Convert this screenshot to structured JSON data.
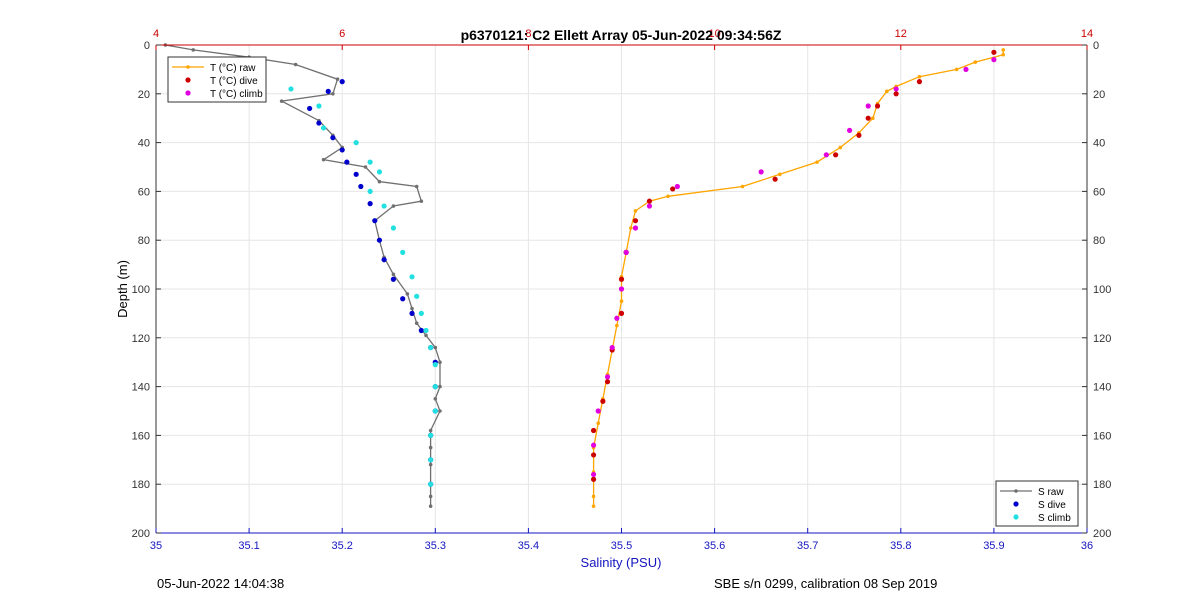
{
  "chart_data": {
    "type": "scatter",
    "title": "p6370121: C2 Ellett Array 05-Jun-2022 09:34:56Z",
    "xlabel": "Salinity (PSU)",
    "ylabel": "Depth (m)",
    "xlim": [
      35,
      36
    ],
    "x_ticks": [
      "35",
      "35.1",
      "35.2",
      "35.3",
      "35.4",
      "35.5",
      "35.6",
      "35.7",
      "35.8",
      "35.9",
      "36"
    ],
    "top_xlim": [
      4,
      14
    ],
    "top_ticks": [
      "4",
      "6",
      "8",
      "10",
      "12",
      "14"
    ],
    "top_axis_color": "#cc0000",
    "ylim": [
      0,
      200
    ],
    "y_reversed": true,
    "y_ticks": [
      "0",
      "20",
      "40",
      "60",
      "80",
      "100",
      "120",
      "140",
      "160",
      "180",
      "200"
    ],
    "grid": true,
    "temperature": {
      "legend_placement": "top-left",
      "series": [
        {
          "name": "T (°C) raw",
          "color": "#ffa500",
          "kind": "line",
          "points": [
            [
              13.1,
              2
            ],
            [
              13.1,
              4
            ],
            [
              12.8,
              7
            ],
            [
              12.6,
              10
            ],
            [
              12.2,
              13
            ],
            [
              11.95,
              17
            ],
            [
              11.85,
              19
            ],
            [
              11.75,
              24
            ],
            [
              11.7,
              30
            ],
            [
              11.55,
              36
            ],
            [
              11.35,
              42
            ],
            [
              11.1,
              48
            ],
            [
              10.7,
              53
            ],
            [
              10.3,
              58
            ],
            [
              9.5,
              62
            ],
            [
              9.3,
              64
            ],
            [
              9.15,
              68
            ],
            [
              9.1,
              75
            ],
            [
              9.05,
              85
            ],
            [
              9.0,
              95
            ],
            [
              9.0,
              105
            ],
            [
              8.95,
              115
            ],
            [
              8.9,
              125
            ],
            [
              8.85,
              135
            ],
            [
              8.8,
              145
            ],
            [
              8.75,
              155
            ],
            [
              8.7,
              165
            ],
            [
              8.7,
              175
            ],
            [
              8.7,
              185
            ],
            [
              8.7,
              189
            ]
          ]
        },
        {
          "name": "T (°C) dive",
          "color": "#cc0000",
          "kind": "dot",
          "points": [
            [
              13.0,
              3
            ],
            [
              12.2,
              15
            ],
            [
              11.95,
              20
            ],
            [
              11.75,
              25
            ],
            [
              11.65,
              30
            ],
            [
              11.55,
              37
            ],
            [
              11.3,
              45
            ],
            [
              10.65,
              55
            ],
            [
              9.55,
              59
            ],
            [
              9.3,
              64
            ],
            [
              9.15,
              72
            ],
            [
              9.05,
              85
            ],
            [
              9.0,
              96
            ],
            [
              9.0,
              110
            ],
            [
              8.9,
              125
            ],
            [
              8.85,
              138
            ],
            [
              8.8,
              146
            ],
            [
              8.7,
              158
            ],
            [
              8.7,
              168
            ],
            [
              8.7,
              178
            ]
          ]
        },
        {
          "name": "T (°C) climb",
          "color": "#e000e0",
          "kind": "dot",
          "points": [
            [
              13.0,
              6
            ],
            [
              12.7,
              10
            ],
            [
              11.95,
              18
            ],
            [
              11.65,
              25
            ],
            [
              11.45,
              35
            ],
            [
              11.2,
              45
            ],
            [
              10.5,
              52
            ],
            [
              9.6,
              58
            ],
            [
              9.3,
              66
            ],
            [
              9.15,
              75
            ],
            [
              9.05,
              85
            ],
            [
              9.0,
              100
            ],
            [
              8.95,
              112
            ],
            [
              8.9,
              124
            ],
            [
              8.85,
              136
            ],
            [
              8.75,
              150
            ],
            [
              8.7,
              164
            ],
            [
              8.7,
              176
            ]
          ]
        }
      ]
    },
    "salinity": {
      "legend_placement": "bottom-right",
      "series": [
        {
          "name": "S raw",
          "color": "#707070",
          "kind": "line",
          "points": [
            [
              35.01,
              0
            ],
            [
              35.04,
              2
            ],
            [
              35.1,
              5
            ],
            [
              35.15,
              8
            ],
            [
              35.195,
              14
            ],
            [
              35.19,
              20
            ],
            [
              35.135,
              23
            ],
            [
              35.175,
              31
            ],
            [
              35.19,
              37
            ],
            [
              35.2,
              42
            ],
            [
              35.18,
              47
            ],
            [
              35.225,
              50
            ],
            [
              35.24,
              56
            ],
            [
              35.28,
              58
            ],
            [
              35.285,
              64
            ],
            [
              35.255,
              66
            ],
            [
              35.235,
              72
            ],
            [
              35.24,
              80
            ],
            [
              35.245,
              87
            ],
            [
              35.255,
              94
            ],
            [
              35.27,
              102
            ],
            [
              35.275,
              108
            ],
            [
              35.28,
              114
            ],
            [
              35.29,
              119
            ],
            [
              35.3,
              124
            ],
            [
              35.305,
              130
            ],
            [
              35.305,
              140
            ],
            [
              35.3,
              145
            ],
            [
              35.305,
              150
            ],
            [
              35.295,
              158
            ],
            [
              35.295,
              165
            ],
            [
              35.295,
              172
            ],
            [
              35.295,
              180
            ],
            [
              35.295,
              185
            ],
            [
              35.295,
              189
            ]
          ]
        },
        {
          "name": "S dive",
          "color": "#0000cc",
          "kind": "dot",
          "points": [
            [
              35.2,
              15
            ],
            [
              35.185,
              19
            ],
            [
              35.165,
              26
            ],
            [
              35.175,
              32
            ],
            [
              35.19,
              38
            ],
            [
              35.2,
              43
            ],
            [
              35.205,
              48
            ],
            [
              35.215,
              53
            ],
            [
              35.22,
              58
            ],
            [
              35.23,
              65
            ],
            [
              35.235,
              72
            ],
            [
              35.24,
              80
            ],
            [
              35.245,
              88
            ],
            [
              35.255,
              96
            ],
            [
              35.265,
              104
            ],
            [
              35.275,
              110
            ],
            [
              35.285,
              117
            ],
            [
              35.295,
              124
            ],
            [
              35.3,
              130
            ],
            [
              35.3,
              140
            ],
            [
              35.3,
              150
            ],
            [
              35.295,
              160
            ],
            [
              35.295,
              170
            ],
            [
              35.295,
              180
            ]
          ]
        },
        {
          "name": "S climb",
          "color": "#22e0e0",
          "kind": "dot",
          "points": [
            [
              35.09,
              8
            ],
            [
              35.105,
              14
            ],
            [
              35.145,
              18
            ],
            [
              35.175,
              25
            ],
            [
              35.18,
              34
            ],
            [
              35.215,
              40
            ],
            [
              35.23,
              48
            ],
            [
              35.24,
              52
            ],
            [
              35.23,
              60
            ],
            [
              35.245,
              66
            ],
            [
              35.255,
              75
            ],
            [
              35.265,
              85
            ],
            [
              35.275,
              95
            ],
            [
              35.28,
              103
            ],
            [
              35.285,
              110
            ],
            [
              35.29,
              117
            ],
            [
              35.295,
              124
            ],
            [
              35.3,
              131
            ],
            [
              35.3,
              140
            ],
            [
              35.3,
              150
            ],
            [
              35.295,
              160
            ],
            [
              35.295,
              170
            ],
            [
              35.295,
              180
            ]
          ]
        }
      ]
    }
  },
  "footer": {
    "left": "05-Jun-2022 14:04:38",
    "right": "SBE s/n 0299, calibration 08 Sep 2019"
  }
}
